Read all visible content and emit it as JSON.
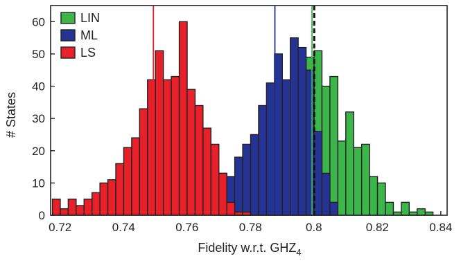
{
  "chart_data": {
    "type": "bar",
    "subtype": "histogram",
    "xlabel_main": "Fidelity w.r.t. GHZ",
    "xlabel_sub": "4",
    "ylabel": "# States",
    "xlim": [
      0.717,
      0.842
    ],
    "ylim": [
      0,
      65
    ],
    "bin_width": 0.0025,
    "x_ticks": [
      0.72,
      0.74,
      0.76,
      0.78,
      0.8,
      0.82,
      0.84
    ],
    "x_tick_labels": [
      "0.72",
      "0.74",
      "0.76",
      "0.78",
      "0.8",
      "0.82",
      "0.84"
    ],
    "y_ticks": [
      0,
      10,
      20,
      30,
      40,
      50,
      60
    ],
    "y_tick_labels": [
      "0",
      "10",
      "20",
      "30",
      "40",
      "50",
      "60"
    ],
    "legend_position": "top-left",
    "grid": false,
    "series": [
      {
        "name": "LS",
        "color": "#e8202a",
        "bins": [
          {
            "x": 0.7188,
            "y": 5
          },
          {
            "x": 0.7213,
            "y": 2
          },
          {
            "x": 0.7238,
            "y": 5
          },
          {
            "x": 0.7263,
            "y": 3
          },
          {
            "x": 0.7288,
            "y": 5
          },
          {
            "x": 0.7313,
            "y": 7
          },
          {
            "x": 0.7338,
            "y": 10
          },
          {
            "x": 0.7363,
            "y": 11
          },
          {
            "x": 0.7388,
            "y": 16
          },
          {
            "x": 0.7413,
            "y": 21
          },
          {
            "x": 0.7438,
            "y": 24
          },
          {
            "x": 0.7463,
            "y": 33
          },
          {
            "x": 0.7488,
            "y": 42
          },
          {
            "x": 0.7513,
            "y": 51
          },
          {
            "x": 0.7538,
            "y": 42
          },
          {
            "x": 0.7563,
            "y": 43
          },
          {
            "x": 0.7588,
            "y": 60
          },
          {
            "x": 0.7613,
            "y": 39
          },
          {
            "x": 0.7638,
            "y": 34
          },
          {
            "x": 0.7663,
            "y": 27
          },
          {
            "x": 0.7688,
            "y": 22
          },
          {
            "x": 0.7713,
            "y": 13
          },
          {
            "x": 0.7738,
            "y": 4
          },
          {
            "x": 0.7763,
            "y": 1
          },
          {
            "x": 0.7788,
            "y": 1
          }
        ]
      },
      {
        "name": "ML",
        "color": "#253494",
        "bins": [
          {
            "x": 0.7713,
            "y": 13
          },
          {
            "x": 0.7738,
            "y": 12
          },
          {
            "x": 0.7763,
            "y": 18
          },
          {
            "x": 0.7788,
            "y": 22
          },
          {
            "x": 0.7813,
            "y": 25
          },
          {
            "x": 0.7838,
            "y": 34
          },
          {
            "x": 0.7863,
            "y": 41
          },
          {
            "x": 0.7888,
            "y": 50
          },
          {
            "x": 0.7913,
            "y": 42
          },
          {
            "x": 0.7938,
            "y": 55
          },
          {
            "x": 0.7963,
            "y": 52
          },
          {
            "x": 0.7988,
            "y": 45
          },
          {
            "x": 0.8013,
            "y": 26
          },
          {
            "x": 0.8038,
            "y": 13
          },
          {
            "x": 0.8063,
            "y": 4
          }
        ]
      },
      {
        "name": "LIN",
        "color": "#3cb54a",
        "bins": [
          {
            "x": 0.7713,
            "y": 4
          },
          {
            "x": 0.7738,
            "y": 6
          },
          {
            "x": 0.7763,
            "y": 5
          },
          {
            "x": 0.7788,
            "y": 8
          },
          {
            "x": 0.7813,
            "y": 15
          },
          {
            "x": 0.7838,
            "y": 14
          },
          {
            "x": 0.7863,
            "y": 15
          },
          {
            "x": 0.7888,
            "y": 15
          },
          {
            "x": 0.7913,
            "y": 27
          },
          {
            "x": 0.7938,
            "y": 34
          },
          {
            "x": 0.7963,
            "y": 38
          },
          {
            "x": 0.7988,
            "y": 49
          },
          {
            "x": 0.8013,
            "y": 51
          },
          {
            "x": 0.8038,
            "y": 40
          },
          {
            "x": 0.8063,
            "y": 43
          },
          {
            "x": 0.8088,
            "y": 23
          },
          {
            "x": 0.8113,
            "y": 32
          },
          {
            "x": 0.8138,
            "y": 21
          },
          {
            "x": 0.8163,
            "y": 22
          },
          {
            "x": 0.8188,
            "y": 12
          },
          {
            "x": 0.8213,
            "y": 10
          },
          {
            "x": 0.8238,
            "y": 4
          },
          {
            "x": 0.8263,
            "y": 1
          },
          {
            "x": 0.8288,
            "y": 4
          },
          {
            "x": 0.8313,
            "y": 1
          },
          {
            "x": 0.8338,
            "y": 2
          },
          {
            "x": 0.8363,
            "y": 1
          }
        ]
      }
    ],
    "draw_order": [
      "LIN",
      "ML",
      "LS"
    ],
    "legend_order": [
      "LIN",
      "ML",
      "LS"
    ],
    "reference_lines": [
      {
        "series": "LS",
        "x": 0.7494,
        "color": "#e8202a",
        "style": "solid"
      },
      {
        "series": "ML",
        "x": 0.7877,
        "color": "#253494",
        "style": "solid"
      },
      {
        "series": "LIN",
        "x": 0.7994,
        "color": "#3cb54a",
        "style": "solid"
      },
      {
        "series": "target",
        "x": 0.8001,
        "color": "#111111",
        "style": "dashed"
      }
    ]
  }
}
